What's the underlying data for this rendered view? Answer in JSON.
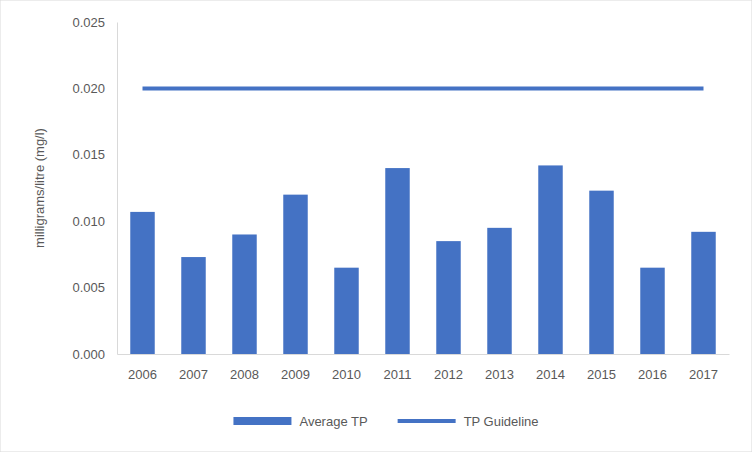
{
  "chart_data": {
    "type": "bar",
    "y_label": "milligrams/litre (mg/l)",
    "categories": [
      "2006",
      "2007",
      "2008",
      "2009",
      "2010",
      "2011",
      "2012",
      "2013",
      "2014",
      "2015",
      "2016",
      "2017"
    ],
    "series": [
      {
        "name": "Average TP",
        "type": "bar",
        "color": "#4472c4",
        "values": [
          0.0107,
          0.0073,
          0.009,
          0.012,
          0.0065,
          0.014,
          0.0085,
          0.0095,
          0.0142,
          0.0123,
          0.0065,
          0.0092
        ]
      },
      {
        "name": "TP Guideline",
        "type": "line",
        "color": "#4472c4",
        "values": [
          0.02,
          0.02,
          0.02,
          0.02,
          0.02,
          0.02,
          0.02,
          0.02,
          0.02,
          0.02,
          0.02,
          0.02
        ]
      }
    ],
    "ylim": [
      0,
      0.025
    ],
    "yticks": [
      {
        "value": 0,
        "label": "0.000"
      },
      {
        "value": 0.005,
        "label": "0.005"
      },
      {
        "value": 0.01,
        "label": "0.010"
      },
      {
        "value": 0.015,
        "label": "0.015"
      },
      {
        "value": 0.02,
        "label": "0.020"
      },
      {
        "value": 0.025,
        "label": "0.025"
      }
    ],
    "grid": false,
    "legend": "bottom"
  }
}
